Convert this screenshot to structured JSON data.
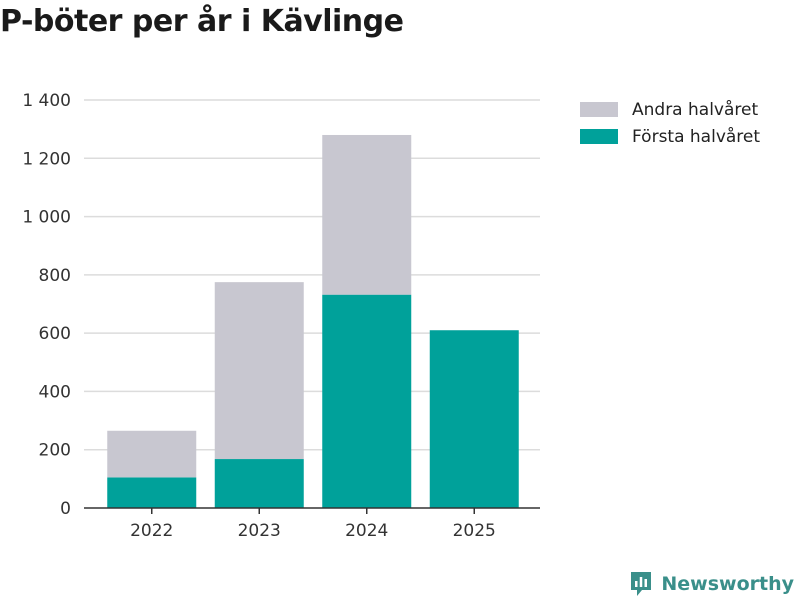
{
  "chart_data": {
    "type": "bar",
    "stacked": true,
    "title": "P-böter per år i Kävlinge",
    "categories": [
      "2022",
      "2023",
      "2024",
      "2025"
    ],
    "series": [
      {
        "name": "Första halvåret",
        "color": "#00a19a",
        "values": [
          105,
          168,
          732,
          610
        ]
      },
      {
        "name": "Andra halvåret",
        "color": "#c8c7d0",
        "values": [
          160,
          607,
          548,
          0
        ]
      }
    ],
    "legend_order": [
      "Andra halvåret",
      "Första halvåret"
    ],
    "ylim": [
      0,
      1400
    ],
    "yticks": [
      0,
      200,
      400,
      600,
      800,
      1000,
      1200,
      1400
    ],
    "ytick_labels": [
      "0",
      "200",
      "400",
      "600",
      "800",
      "1 000",
      "1 200",
      "1 400"
    ],
    "xlabel": "",
    "ylabel": "",
    "grid": true,
    "legend_position": "top-right"
  },
  "brand": {
    "name": "Newsworthy",
    "icon": "newsworthy-logo-icon",
    "color": "#3a8f8a"
  }
}
